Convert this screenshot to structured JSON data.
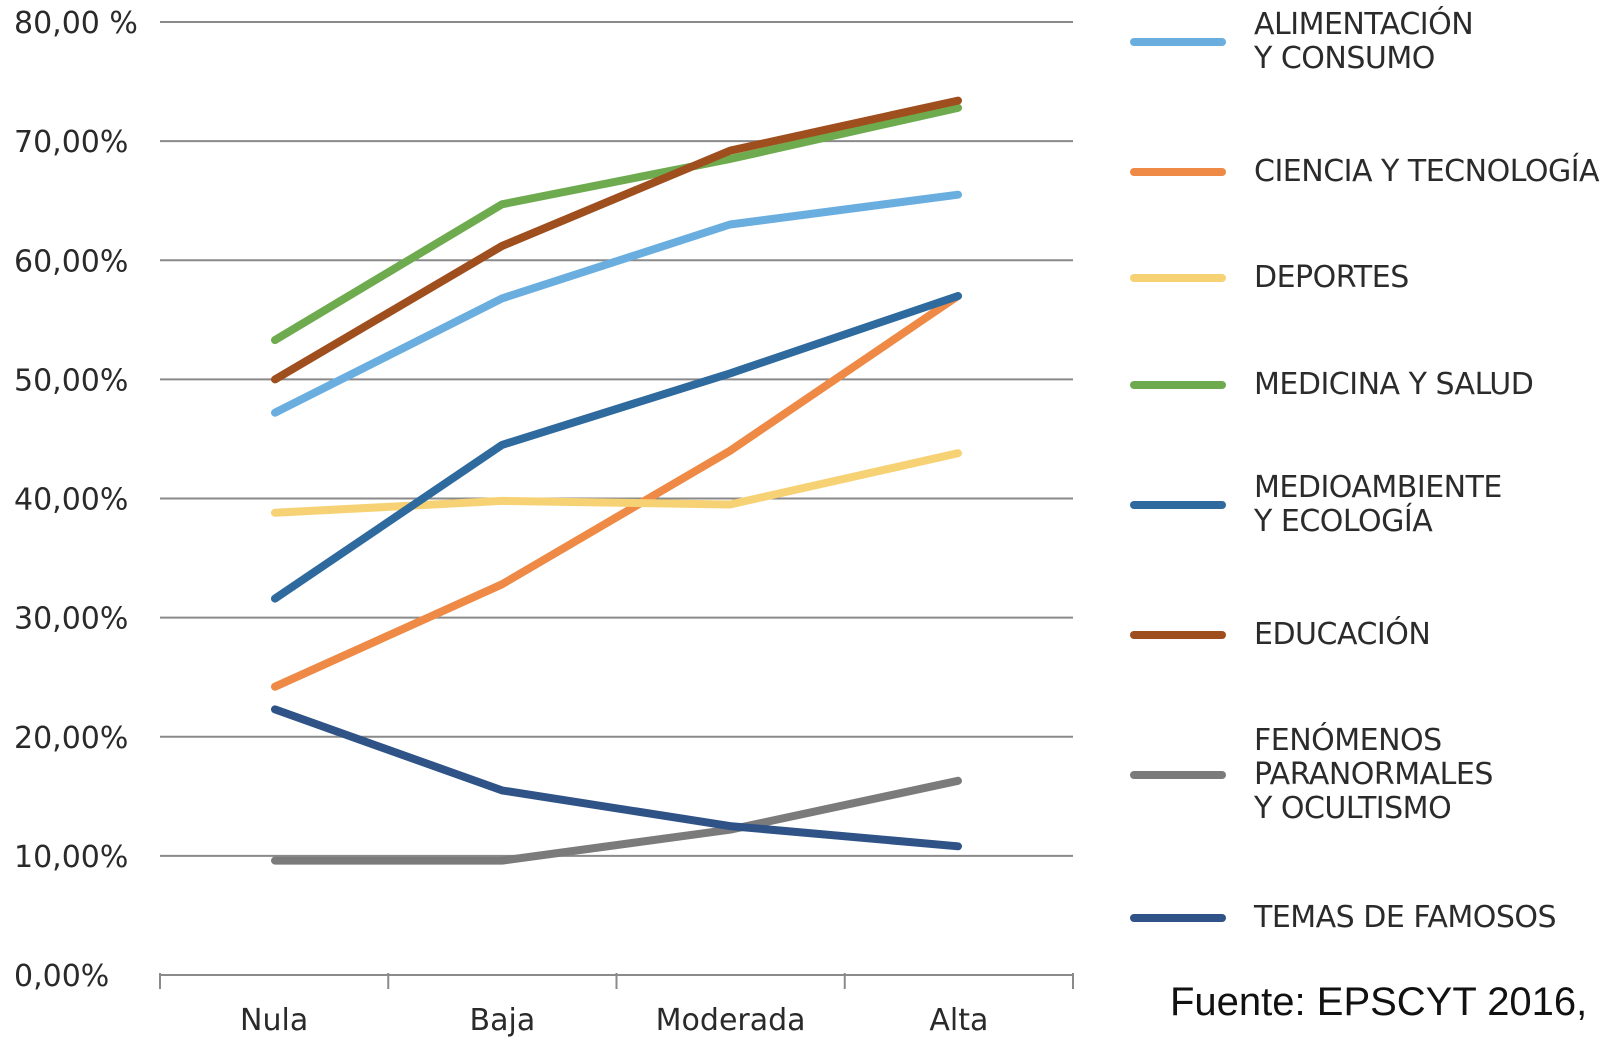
{
  "chart_data": {
    "type": "line",
    "categories": [
      "Nula",
      "Baja",
      "Moderada",
      "Alta"
    ],
    "y_ticks": [
      "0,00%",
      "10,00%",
      "20,00%",
      "30,00%",
      "40,00%",
      "50,00%",
      "60,00%",
      "70,00%",
      "80,00 %"
    ],
    "ylim": [
      0,
      80
    ],
    "grid": true,
    "legend_position": "right",
    "series": [
      {
        "name": "ALIMENTACIÓN\nY CONSUMO",
        "color": "#6aaee0",
        "values": [
          47.2,
          56.8,
          63.0,
          65.5
        ]
      },
      {
        "name": "CIENCIA Y TECNOLOGÍA",
        "color": "#ee8a45",
        "values": [
          24.2,
          32.8,
          44.0,
          57.0
        ]
      },
      {
        "name": "DEPORTES",
        "color": "#f7d274",
        "values": [
          38.8,
          39.8,
          39.5,
          43.8
        ]
      },
      {
        "name": "MEDICINA Y SALUD",
        "color": "#6eab4e",
        "values": [
          53.3,
          64.7,
          68.5,
          72.8
        ]
      },
      {
        "name": "MEDIOAMBIENTE\nY ECOLOGÍA",
        "color": "#2e6a9e",
        "values": [
          31.6,
          44.5,
          50.5,
          57.0
        ]
      },
      {
        "name": "EDUCACIÓN",
        "color": "#9f4e1d",
        "values": [
          50.0,
          61.2,
          69.2,
          73.4
        ]
      },
      {
        "name": "FENÓMENOS\nPARANORMALES\nY OCULTISMO",
        "color": "#7b7b7b",
        "values": [
          9.6,
          9.6,
          12.2,
          16.3
        ]
      },
      {
        "name": "TEMAS DE FAMOSOS",
        "color": "#2f5387",
        "values": [
          22.3,
          15.5,
          12.5,
          10.8
        ]
      }
    ]
  },
  "source_note": "Fuente: EPSCYT 2016,"
}
